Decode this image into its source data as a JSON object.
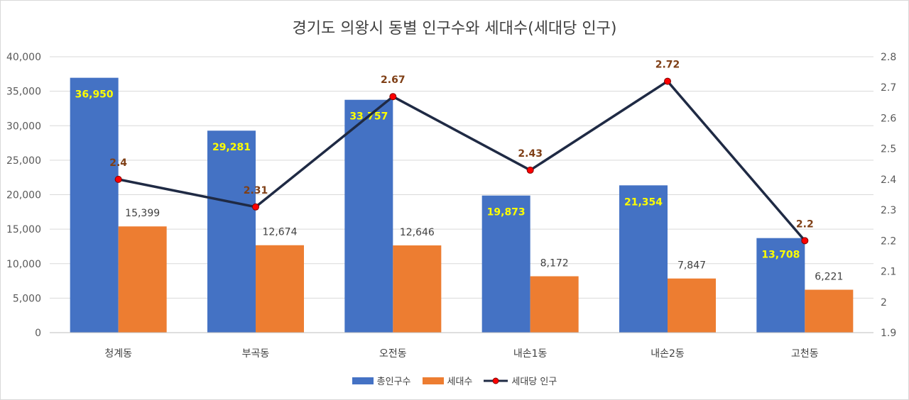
{
  "chart_data": {
    "type": "bar",
    "title": "경기도 의왕시 동별 인구수와 세대수(세대당 인구)",
    "categories": [
      "청계동",
      "부곡동",
      "오전동",
      "내손1동",
      "내손2동",
      "고천동"
    ],
    "series": [
      {
        "name": "총인구수",
        "kind": "bar",
        "axis": "left",
        "color": "#4472c4",
        "values": [
          36950,
          29281,
          33757,
          19873,
          21354,
          13708
        ],
        "labels": [
          "36,950",
          "29,281",
          "33,757",
          "19,873",
          "21,354",
          "13,708"
        ]
      },
      {
        "name": "세대수",
        "kind": "bar",
        "axis": "left",
        "color": "#ed7d31",
        "values": [
          15399,
          12674,
          12646,
          8172,
          7847,
          6221
        ],
        "labels": [
          "15,399",
          "12,674",
          "12,646",
          "8,172",
          "7,847",
          "6,221"
        ]
      },
      {
        "name": "세대당 인구",
        "kind": "line",
        "axis": "right",
        "color": "#1f2a44",
        "marker_color": "#ff0000",
        "values": [
          2.4,
          2.31,
          2.67,
          2.43,
          2.72,
          2.2
        ],
        "labels": [
          "2.4",
          "2.31",
          "2.67",
          "2.43",
          "2.72",
          "2.2"
        ]
      }
    ],
    "y_left": {
      "ylim": [
        0,
        40000
      ],
      "ticks": [
        "0",
        "5,000",
        "10,000",
        "15,000",
        "20,000",
        "25,000",
        "30,000",
        "35,000",
        "40,000"
      ]
    },
    "y_right": {
      "ylim": [
        1.9,
        2.8
      ],
      "ticks": [
        "1.9",
        "2",
        "2.1",
        "2.2",
        "2.3",
        "2.4",
        "2.5",
        "2.6",
        "2.7",
        "2.8"
      ]
    },
    "grid": true,
    "legend": "bottom"
  }
}
